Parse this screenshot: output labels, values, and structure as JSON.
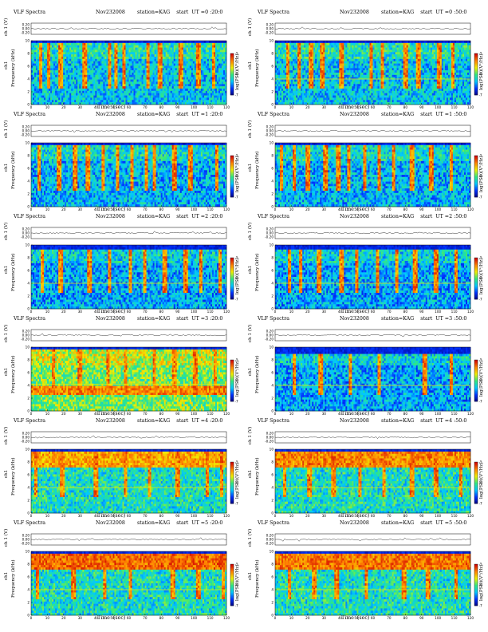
{
  "colors": {
    "spectrogram_colormap": [
      "#00007a",
      "#0030ff",
      "#00c8ff",
      "#30e880",
      "#f0f000",
      "#ff8000",
      "#d00000"
    ]
  },
  "chart_data": [
    {
      "type": "heatmap",
      "panel": "0:20",
      "title": "VLF Spectra",
      "date": "Nov232008",
      "station": "station=KAG",
      "start": "start  UT =0 :20:0",
      "ch1_label": "ch 1 (V)",
      "ch1_ticks": [
        "0.20",
        "0.00",
        "-0.20"
      ],
      "ylabel": "Frequency  (kHz)",
      "ylabel_ch": "ch1",
      "yticks": [
        "0",
        "2",
        "4",
        "6",
        "8",
        "10"
      ],
      "ylim": [
        0,
        10
      ],
      "xlabel": "Time  (sec)",
      "xticks": [
        "0",
        "10",
        "20",
        "30",
        "40",
        "50",
        "60",
        "70",
        "80",
        "90",
        "100",
        "110",
        "120"
      ],
      "xlim": [
        0,
        120
      ],
      "colorbar_label": "log(PSD)(V²/Hz)",
      "colorbar_ticks": [
        "-5",
        "-6",
        "-7"
      ],
      "activity_top_khz": 9.5,
      "background_level": 0.35,
      "band_levels": [],
      "band_khz": [],
      "tone_khz": [],
      "burst_times_s": [
        6,
        11,
        18,
        33,
        48,
        52,
        57,
        72,
        79,
        92,
        103,
        112
      ],
      "seed": 1
    },
    {
      "type": "heatmap",
      "panel": "0:50",
      "title": "VLF Spectra",
      "date": "Nov232008",
      "station": "station=KAG",
      "start": "start  UT =0 :50:0",
      "ch1_label": "ch 1 (V)",
      "ch1_ticks": [
        "0.20",
        "0.00",
        "-0.20"
      ],
      "ylabel": "Frequency  (kHz)",
      "ylabel_ch": "ch1",
      "yticks": [
        "0",
        "2",
        "4",
        "6",
        "8",
        "10"
      ],
      "ylim": [
        0,
        10
      ],
      "xlabel": "Time  (sec)",
      "xticks": [
        "0",
        "10",
        "20",
        "30",
        "40",
        "50",
        "60",
        "70",
        "80",
        "90",
        "100",
        "110",
        "120"
      ],
      "xlim": [
        0,
        120
      ],
      "colorbar_label": "log(PSD)(V²/Hz)",
      "colorbar_ticks": [
        "-5",
        "-6",
        "-7"
      ],
      "activity_top_khz": 9.5,
      "background_level": 0.35,
      "band_levels": [],
      "band_khz": [],
      "tone_khz": [
        4.0
      ],
      "burst_times_s": [
        8,
        15,
        22,
        29,
        41,
        59,
        66,
        80,
        88,
        101,
        109
      ],
      "seed": 2
    },
    {
      "type": "heatmap",
      "panel": "1:20",
      "title": "VLF Spectra",
      "date": "Nov232008",
      "station": "station=KAG",
      "start": "start  UT =1 :20:0",
      "ch1_label": "ch 1 (V)",
      "ch1_ticks": [
        "0.20",
        "0.00",
        "-0.20"
      ],
      "ylabel": "Frequency  (kHz)",
      "ylabel_ch": "ch1",
      "yticks": [
        "0",
        "2",
        "4",
        "6",
        "8",
        "10"
      ],
      "ylim": [
        0,
        10
      ],
      "xlabel": "Time  (sec)",
      "xticks": [
        "0",
        "10",
        "20",
        "30",
        "40",
        "50",
        "60",
        "70",
        "80",
        "90",
        "100",
        "110",
        "120"
      ],
      "xlim": [
        0,
        120
      ],
      "colorbar_label": "log(PSD)(V²/Hz)",
      "colorbar_ticks": [
        "-5",
        "-6",
        "-7"
      ],
      "activity_top_khz": 9.5,
      "background_level": 0.32,
      "band_levels": [],
      "band_khz": [],
      "tone_khz": [],
      "burst_times_s": [
        5,
        17,
        27,
        35,
        44,
        53,
        62,
        71,
        76,
        88,
        98,
        114
      ],
      "seed": 3
    },
    {
      "type": "heatmap",
      "panel": "1:50",
      "title": "VLF Spectra",
      "date": "Nov232008",
      "station": "station=KAG",
      "start": "start  UT =1 :50:0",
      "ch1_label": "ch 1 (V)",
      "ch1_ticks": [
        "0.20",
        "0.00",
        "-0.20"
      ],
      "ylabel": "Frequency  (kHz)",
      "ylabel_ch": "ch1",
      "yticks": [
        "0",
        "2",
        "4",
        "6",
        "8",
        "10"
      ],
      "ylim": [
        0,
        10
      ],
      "xlabel": "Time  (sec)",
      "xticks": [
        "0",
        "10",
        "20",
        "30",
        "40",
        "50",
        "60",
        "70",
        "80",
        "90",
        "100",
        "110",
        "120"
      ],
      "xlim": [
        0,
        120
      ],
      "colorbar_label": "log(PSD)(V²/Hz)",
      "colorbar_ticks": [
        "-5",
        "-6",
        "-7"
      ],
      "activity_top_khz": 9.5,
      "background_level": 0.32,
      "band_levels": [],
      "band_khz": [],
      "tone_khz": [],
      "burst_times_s": [
        4,
        12,
        20,
        31,
        39,
        45,
        55,
        64,
        73,
        84,
        96,
        108
      ],
      "seed": 4
    },
    {
      "type": "heatmap",
      "panel": "2:20",
      "title": "VLF Spectra",
      "date": "Nov232008",
      "station": "station=KAG",
      "start": "start  UT =2 :20:0",
      "ch1_label": "ch 1 (V)",
      "ch1_ticks": [
        "0.20",
        "0.00",
        "-0.20"
      ],
      "ylabel": "Frequency  (kHz)",
      "ylabel_ch": "ch1",
      "yticks": [
        "0",
        "2",
        "4",
        "6",
        "8",
        "10"
      ],
      "ylim": [
        0,
        10
      ],
      "xlabel": "Time  (sec)",
      "xticks": [
        "0",
        "10",
        "20",
        "30",
        "40",
        "50",
        "60",
        "70",
        "80",
        "90",
        "100",
        "110",
        "120"
      ],
      "xlim": [
        0,
        120
      ],
      "colorbar_label": "log(PSD)(V²/Hz)",
      "colorbar_ticks": [
        "-5",
        "-6",
        "-7"
      ],
      "activity_top_khz": 9.3,
      "background_level": 0.3,
      "band_levels": [],
      "band_khz": [],
      "tone_khz": [
        4.0
      ],
      "burst_times_s": [
        7,
        18,
        36,
        48,
        61,
        70,
        82,
        95,
        104,
        116
      ],
      "seed": 5
    },
    {
      "type": "heatmap",
      "panel": "2:50",
      "title": "VLF Spectra",
      "date": "Nov232008",
      "station": "station=KAG",
      "start": "start  UT =2 :50:0",
      "ch1_label": "ch 1 (V)",
      "ch1_ticks": [
        "0.20",
        "0.00",
        "-0.20"
      ],
      "ylabel": "Frequency  (kHz)",
      "ylabel_ch": "ch1",
      "yticks": [
        "0",
        "2",
        "4",
        "6",
        "8",
        "10"
      ],
      "ylim": [
        0,
        10
      ],
      "xlabel": "Time  (sec)",
      "xticks": [
        "0",
        "10",
        "20",
        "30",
        "40",
        "50",
        "60",
        "70",
        "80",
        "90",
        "100",
        "110",
        "120"
      ],
      "xlim": [
        0,
        120
      ],
      "colorbar_label": "log(PSD)(V²/Hz)",
      "colorbar_ticks": [
        "-5",
        "-6",
        "-7"
      ],
      "activity_top_khz": 9.3,
      "background_level": 0.3,
      "band_levels": [],
      "band_khz": [],
      "tone_khz": [
        4.0
      ],
      "burst_times_s": [
        9,
        16,
        27,
        41,
        50,
        63,
        75,
        86,
        99,
        111
      ],
      "seed": 6
    },
    {
      "type": "heatmap",
      "panel": "3:20",
      "title": "VLF Spectra",
      "date": "Nov232008",
      "station": "station=KAG",
      "start": "start  UT =3 :20:0",
      "ch1_label": "ch 1 (V)",
      "ch1_ticks": [
        "0.20",
        "0.00",
        "-0.20"
      ],
      "ylabel": "Frequency  (kHz)",
      "ylabel_ch": "ch1",
      "yticks": [
        "0",
        "2",
        "4",
        "6",
        "8",
        "10"
      ],
      "ylim": [
        0,
        10
      ],
      "xlabel": "Time  (sec)",
      "xticks": [
        "0",
        "10",
        "20",
        "30",
        "40",
        "50",
        "60",
        "70",
        "80",
        "90",
        "100",
        "110",
        "120"
      ],
      "xlim": [
        0,
        120
      ],
      "colorbar_label": "log(PSD)(V²/Hz)",
      "colorbar_ticks": [
        "-5",
        "-6",
        "-7"
      ],
      "activity_top_khz": 9.5,
      "background_level": 0.55,
      "band_levels": [
        0.82
      ],
      "band_khz": [
        [
          2.6,
          3.8
        ]
      ],
      "tone_khz": [
        4.2
      ],
      "burst_times_s": [
        14,
        30,
        47,
        58,
        76,
        88,
        101,
        113
      ],
      "seed": 7
    },
    {
      "type": "heatmap",
      "panel": "3:50",
      "title": "VLF Spectra",
      "date": "Nov232008",
      "station": "station=KAG",
      "start": "start  UT =3 :50:0",
      "ch1_label": "ch 1 (V)",
      "ch1_ticks": [
        "0.20",
        "0.00",
        "-0.20"
      ],
      "ylabel": "Frequency  (kHz)",
      "ylabel_ch": "ch1",
      "yticks": [
        "0",
        "2",
        "4",
        "6",
        "8",
        "10"
      ],
      "ylim": [
        0,
        10
      ],
      "xlabel": "Time  (sec)",
      "xticks": [
        "0",
        "10",
        "20",
        "30",
        "40",
        "50",
        "60",
        "70",
        "80",
        "90",
        "100",
        "110",
        "120"
      ],
      "xlim": [
        0,
        120
      ],
      "colorbar_label": "log(PSD)(V²/Hz)",
      "colorbar_ticks": [
        "-5",
        "-6",
        "-7"
      ],
      "activity_top_khz": 9.0,
      "background_level": 0.3,
      "band_levels": [],
      "band_khz": [],
      "tone_khz": [
        4.0
      ],
      "burst_times_s": [
        12,
        28,
        46,
        64,
        92,
        108
      ],
      "seed": 8
    },
    {
      "type": "heatmap",
      "panel": "4:20",
      "title": "VLF Spectra",
      "date": "Nov232008",
      "station": "station=KAG",
      "start": "start  UT =4 :20:0",
      "ch1_label": "ch 1 (V)",
      "ch1_ticks": [
        "0.20",
        "0.00",
        "-0.20"
      ],
      "ylabel": "Frequency  (kHz)",
      "ylabel_ch": "ch1",
      "yticks": [
        "0",
        "2",
        "4",
        "6",
        "8",
        "10"
      ],
      "ylim": [
        0,
        10
      ],
      "xlabel": "Time  (sec)",
      "xticks": [
        "0",
        "10",
        "20",
        "30",
        "40",
        "50",
        "60",
        "70",
        "80",
        "90",
        "100",
        "110",
        "120"
      ],
      "xlim": [
        0,
        120
      ],
      "colorbar_label": "log(PSD)(V²/Hz)",
      "colorbar_ticks": [
        "-5",
        "-6",
        "-7"
      ],
      "activity_top_khz": 9.8,
      "background_level": 0.42,
      "band_levels": [
        0.7
      ],
      "band_khz": [
        [
          7.0,
          9.5
        ]
      ],
      "tone_khz": [
        4.0
      ],
      "burst_times_s": [
        3,
        19,
        40,
        58,
        73,
        90,
        108,
        117
      ],
      "seed": 9
    },
    {
      "type": "heatmap",
      "panel": "4:50",
      "title": "VLF Spectra",
      "date": "Nov232008",
      "station": "station=KAG",
      "start": "start  UT =4 :50:0",
      "ch1_label": "ch 1 (V)",
      "ch1_ticks": [
        "0.20",
        "0.00",
        "-0.20"
      ],
      "ylabel": "Frequency  (kHz)",
      "ylabel_ch": "ch1",
      "yticks": [
        "0",
        "2",
        "4",
        "6",
        "8",
        "10"
      ],
      "ylim": [
        0,
        10
      ],
      "xlabel": "Time  (sec)",
      "xticks": [
        "0",
        "10",
        "20",
        "30",
        "40",
        "50",
        "60",
        "70",
        "80",
        "90",
        "100",
        "110",
        "120"
      ],
      "xlim": [
        0,
        120
      ],
      "colorbar_label": "log(PSD)(V²/Hz)",
      "colorbar_ticks": [
        "-5",
        "-6",
        "-7"
      ],
      "activity_top_khz": 9.8,
      "background_level": 0.42,
      "band_levels": [
        0.74
      ],
      "band_khz": [
        [
          7.0,
          9.5
        ]
      ],
      "tone_khz": [
        4.0
      ],
      "burst_times_s": [
        6,
        21,
        36,
        52,
        67,
        84,
        99,
        114
      ],
      "seed": 10
    },
    {
      "type": "heatmap",
      "panel": "5:20",
      "title": "VLF Spectra",
      "date": "Nov232008",
      "station": "station=KAG",
      "start": "start  UT =5 :20:0",
      "ch1_label": "ch 1 (V)",
      "ch1_ticks": [
        "0.20",
        "0.00",
        "-0.20"
      ],
      "ylabel": "Frequency  (kHz)",
      "ylabel_ch": "ch1",
      "yticks": [
        "0",
        "2",
        "4",
        "6",
        "8",
        "10"
      ],
      "ylim": [
        0,
        10
      ],
      "xlabel": "Time  (sec)",
      "xticks": [
        "0",
        "10",
        "20",
        "30",
        "40",
        "50",
        "60",
        "70",
        "80",
        "90",
        "100",
        "110",
        "120"
      ],
      "xlim": [
        0,
        120
      ],
      "colorbar_label": "log(PSD)(V²/Hz)",
      "colorbar_ticks": [
        "-5",
        "-6",
        "-7"
      ],
      "activity_top_khz": 9.8,
      "background_level": 0.42,
      "band_levels": [
        0.78
      ],
      "band_khz": [
        [
          7.0,
          9.5
        ]
      ],
      "tone_khz": [
        4.0
      ],
      "burst_times_s": [
        4,
        26,
        45,
        61,
        87,
        103,
        118
      ],
      "seed": 11
    },
    {
      "type": "heatmap",
      "panel": "5:50",
      "title": "VLF Spectra",
      "date": "Nov232008",
      "station": "station=KAG",
      "start": "start  UT =5 :50:0",
      "ch1_label": "ch 1 (V)",
      "ch1_ticks": [
        "0.20",
        "0.00",
        "-0.20"
      ],
      "ylabel": "Frequency  (kHz)",
      "ylabel_ch": "ch1",
      "yticks": [
        "0",
        "2",
        "4",
        "6",
        "8",
        "10"
      ],
      "ylim": [
        0,
        10
      ],
      "xlabel": "Time  (sec)",
      "xticks": [
        "0",
        "10",
        "20",
        "30",
        "40",
        "50",
        "60",
        "70",
        "80",
        "90",
        "100",
        "110",
        "120"
      ],
      "xlim": [
        0,
        120
      ],
      "colorbar_label": "log(PSD)(V²/Hz)",
      "colorbar_ticks": [
        "-5",
        "-6",
        "-7"
      ],
      "activity_top_khz": 9.8,
      "background_level": 0.42,
      "band_levels": [
        0.76
      ],
      "band_khz": [
        [
          7.0,
          9.5
        ]
      ],
      "tone_khz": [
        4.0
      ],
      "burst_times_s": [
        9,
        24,
        38,
        56,
        79,
        94,
        111
      ],
      "seed": 12
    }
  ]
}
